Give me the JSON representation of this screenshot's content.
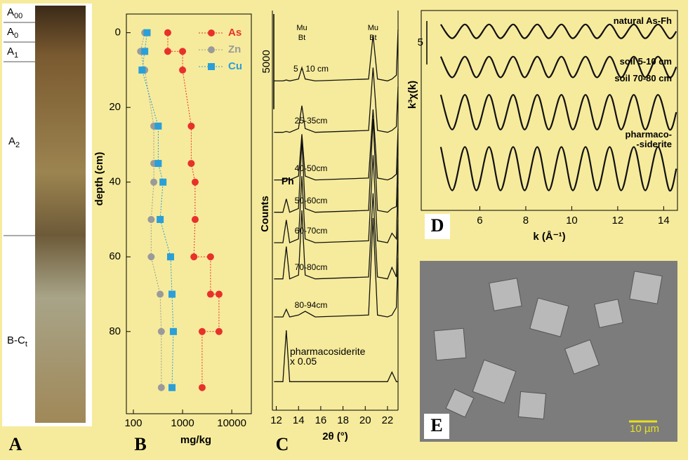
{
  "panel_labels": [
    "A",
    "B",
    "C",
    "D",
    "E"
  ],
  "soil_profile": {
    "horizons": [
      {
        "main": "A",
        "sub": "00"
      },
      {
        "main": "A",
        "sub": "0"
      },
      {
        "main": "A",
        "sub": "1"
      },
      {
        "main": "A",
        "sub": "2"
      },
      {
        "main": "B-C",
        "sub": "t"
      }
    ]
  },
  "micrograph": {
    "scale_bar_label": "10 µm"
  },
  "chart_data": [
    {
      "type": "scatter",
      "x_label": "mg/kg",
      "y_label": "depth (cm)",
      "xlog": true,
      "xlim": [
        72,
        25000
      ],
      "ylim": [
        -5,
        102
      ],
      "y_reversed": true,
      "xticks": [
        100,
        1000,
        10000
      ],
      "yticks": [
        0,
        20,
        40,
        60,
        80
      ],
      "legend": "upper right",
      "series": [
        {
          "name": "As",
          "color": "#e8312a",
          "marker": "circle",
          "x": [
            500,
            500,
            1000,
            1000,
            1500,
            1500,
            1800,
            1800,
            1700,
            3700,
            3700,
            5500,
            5500,
            2500,
            2500
          ],
          "values": [
            0,
            5,
            5,
            10,
            25,
            35,
            40,
            50,
            60,
            60,
            70,
            70,
            80,
            80,
            95
          ]
        },
        {
          "name": "Zn",
          "color": "#9a9a9a",
          "marker": "circle",
          "x": [
            170,
            140,
            170,
            260,
            260,
            260,
            230,
            230,
            350,
            370,
            370
          ],
          "values": [
            0,
            5,
            10,
            25,
            35,
            40,
            50,
            60,
            70,
            80,
            95
          ]
        },
        {
          "name": "Cu",
          "color": "#2a9fd8",
          "marker": "square",
          "x": [
            190,
            170,
            150,
            320,
            320,
            400,
            350,
            570,
            610,
            650,
            610
          ],
          "values": [
            0,
            5,
            10,
            25,
            35,
            40,
            50,
            60,
            70,
            80,
            95
          ]
        }
      ]
    },
    {
      "type": "line",
      "x_label": "2θ (°)",
      "y_label": "Counts",
      "xlim": [
        11.65,
        22.95
      ],
      "ylim": [
        0,
        21000
      ],
      "xticks": [
        12,
        14,
        16,
        18,
        20,
        22
      ],
      "scale_bar": 5000,
      "annotations": [
        "Mu\nBt",
        "Mu\nBt",
        "Ph"
      ],
      "x": [
        11.8,
        12.6,
        12.9,
        13.2,
        14.0,
        14.3,
        14.6,
        15.5,
        20.3,
        20.7,
        21.1,
        22.0,
        22.4,
        22.8,
        22.95
      ],
      "series": [
        {
          "name": "5 - 10 cm",
          "values": [
            17300,
            17300,
            17350,
            17300,
            17400,
            18000,
            17400,
            17300,
            17400,
            19700,
            17400,
            17300,
            17400,
            17600,
            20000
          ]
        },
        {
          "name": "25-35cm",
          "values": [
            14600,
            14600,
            14650,
            14600,
            14800,
            16000,
            14800,
            14600,
            14700,
            18000,
            14700,
            14600,
            14700,
            14900,
            17000
          ]
        },
        {
          "name": "40-50cm",
          "values": [
            12100,
            12100,
            12200,
            12100,
            12300,
            14500,
            12300,
            12100,
            12200,
            15800,
            12200,
            12100,
            12200,
            12400,
            14800
          ]
        },
        {
          "name": "50-60cm",
          "values": [
            10400,
            10400,
            11100,
            10400,
            10600,
            14200,
            10600,
            10400,
            10500,
            15300,
            10500,
            10400,
            10600,
            10700,
            13500
          ]
        },
        {
          "name": "60-70cm",
          "values": [
            8800,
            8800,
            10000,
            8800,
            9000,
            12300,
            9000,
            8800,
            8900,
            13400,
            8900,
            8800,
            9300,
            9000,
            12000
          ]
        },
        {
          "name": "70-80cm",
          "values": [
            6900,
            6900,
            8600,
            6900,
            7100,
            10500,
            7100,
            6900,
            7000,
            11400,
            7000,
            6900,
            7500,
            7000,
            10000
          ]
        },
        {
          "name": "80-94cm",
          "values": [
            4900,
            4900,
            5300,
            4900,
            5000,
            5100,
            5200,
            4900,
            5000,
            10100,
            5000,
            4900,
            5000,
            5400,
            8000
          ]
        },
        {
          "name": "pharmacosiderite\nx 0.05",
          "values": [
            1500,
            1500,
            4200,
            1500,
            1500,
            1500,
            1500,
            1500,
            1500,
            1500,
            1500,
            1500,
            2000,
            1500,
            1500
          ]
        }
      ]
    },
    {
      "type": "line",
      "x_label": "k (Å⁻¹)",
      "y_label": "k³χ(k)",
      "xlim": [
        3.45,
        14.6
      ],
      "ylim": [
        0,
        23
      ],
      "xticks": [
        6,
        8,
        10,
        12,
        14
      ],
      "scale_bar": 5,
      "x": [
        4.3,
        4.8,
        5.35,
        5.85,
        6.4,
        6.9,
        7.45,
        7.95,
        8.5,
        9.0,
        9.55,
        10.05,
        10.6,
        11.1,
        11.65,
        12.15,
        12.7,
        13.2,
        13.75,
        14.25,
        14.55
      ],
      "series": [
        {
          "name": "natural As-Fh",
          "values": [
            21.4,
            19.8,
            21.4,
            19.8,
            21.4,
            19.8,
            21.4,
            19.8,
            21.4,
            19.8,
            21.4,
            19.8,
            21.4,
            19.8,
            21.4,
            19.8,
            21.4,
            19.8,
            21.4,
            19.8,
            20.6
          ]
        },
        {
          "name": "soil 5-10 cm",
          "values": [
            17.7,
            15.3,
            17.7,
            15.3,
            17.7,
            15.3,
            17.7,
            15.3,
            17.7,
            15.3,
            17.7,
            15.3,
            17.7,
            15.3,
            17.7,
            15.3,
            17.7,
            15.3,
            17.7,
            15.3,
            16.5
          ]
        },
        {
          "name": "soil 70-80 cm",
          "values": [
            13.3,
            9.3,
            13.3,
            9.3,
            13.3,
            9.3,
            13.3,
            9.3,
            13.3,
            9.3,
            13.3,
            9.3,
            13.3,
            9.3,
            13.3,
            9.3,
            13.3,
            9.3,
            13.3,
            9.3,
            11.3
          ]
        },
        {
          "name": "pharmaco-\n-siderite",
          "values": [
            7.3,
            2.3,
            7.3,
            2.3,
            7.3,
            2.3,
            7.3,
            2.3,
            7.3,
            2.3,
            7.3,
            2.3,
            7.3,
            2.3,
            7.3,
            2.3,
            7.3,
            2.3,
            7.3,
            2.3,
            4.8
          ]
        }
      ]
    }
  ]
}
